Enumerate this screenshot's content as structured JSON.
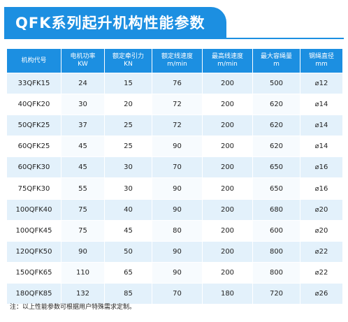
{
  "title": "QFK系列起升机构性能参数",
  "table": {
    "headers": [
      {
        "label": "机构代号",
        "unit": ""
      },
      {
        "label": "电机功率",
        "unit": "KW"
      },
      {
        "label": "额定牵引力",
        "unit": "KN"
      },
      {
        "label": "额定线速度",
        "unit": "m/min"
      },
      {
        "label": "最高线速度",
        "unit": "m/min"
      },
      {
        "label": "最大容绳量",
        "unit": "m"
      },
      {
        "label": "钢绳直径",
        "unit": "mm"
      }
    ],
    "rows": [
      [
        "33QFK15",
        "24",
        "15",
        "76",
        "200",
        "500",
        "⌀12"
      ],
      [
        "40QFK20",
        "30",
        "20",
        "72",
        "200",
        "620",
        "⌀14"
      ],
      [
        "50QFK25",
        "37",
        "25",
        "72",
        "200",
        "620",
        "⌀14"
      ],
      [
        "60QFK25",
        "45",
        "25",
        "90",
        "200",
        "620",
        "⌀14"
      ],
      [
        "60QFK30",
        "45",
        "30",
        "70",
        "200",
        "650",
        "⌀16"
      ],
      [
        "75QFK30",
        "55",
        "30",
        "90",
        "200",
        "650",
        "⌀16"
      ],
      [
        "100QFK40",
        "75",
        "40",
        "90",
        "200",
        "680",
        "⌀20"
      ],
      [
        "100QFK45",
        "75",
        "45",
        "80",
        "200",
        "600",
        "⌀20"
      ],
      [
        "120QFK50",
        "90",
        "50",
        "90",
        "200",
        "800",
        "⌀22"
      ],
      [
        "150QFK65",
        "110",
        "65",
        "90",
        "200",
        "800",
        "⌀22"
      ],
      [
        "180QFK85",
        "132",
        "85",
        "70",
        "180",
        "720",
        "⌀26"
      ]
    ]
  },
  "note": "注：以上性能参数可根据用户特殊需求定制。",
  "colors": {
    "accent": "#1c8fe1",
    "row_stripe": "#e3f1fb"
  }
}
